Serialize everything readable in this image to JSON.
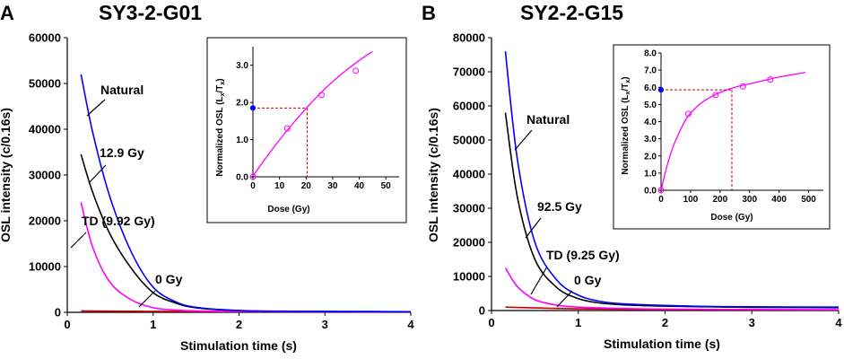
{
  "chart_data": [
    {
      "type": "line",
      "panel_label": "A",
      "title": "SY3-2-G01",
      "xlabel": "Stimulation time (s)",
      "ylabel": "OSL intensity (c/0.16s)",
      "xlim": [
        0,
        4
      ],
      "ylim": [
        0,
        60000
      ],
      "xticks": [
        "0",
        "1",
        "2",
        "3",
        "4"
      ],
      "yticks": [
        "0",
        "10000",
        "20000",
        "30000",
        "40000",
        "50000",
        "60000"
      ],
      "series": [
        {
          "name": "Natural",
          "color": "#0000ff",
          "x": [
            0.16,
            0.3,
            0.5,
            0.75,
            1.0,
            1.25,
            1.5,
            2.0,
            2.5,
            3.0,
            4.0
          ],
          "values": [
            52000,
            39000,
            25000,
            13000,
            5500,
            2400,
            1100,
            400,
            250,
            200,
            150
          ]
        },
        {
          "name": "12.9 Gy",
          "color": "#000000",
          "x": [
            0.16,
            0.3,
            0.5,
            0.75,
            1.0,
            1.25,
            1.5,
            2.0,
            2.5,
            3.0,
            4.0
          ],
          "values": [
            34500,
            26000,
            17000,
            9500,
            4300,
            2100,
            1000,
            350,
            220,
            180,
            120
          ]
        },
        {
          "name": "TD (9.92 Gy)",
          "color": "#ff00ff",
          "x": [
            0.16,
            0.3,
            0.5,
            0.75,
            1.0,
            1.25,
            1.5,
            2.0,
            2.5,
            3.0,
            4.0
          ],
          "values": [
            24000,
            14000,
            6500,
            2700,
            1000,
            500,
            300,
            150,
            120,
            100,
            80
          ]
        },
        {
          "name": "0 Gy",
          "color": "#cc0000",
          "x": [
            0.16,
            1.0,
            2.0,
            3.0,
            4.0
          ],
          "values": [
            300,
            200,
            150,
            120,
            100
          ]
        }
      ],
      "annotations": [
        "Natural",
        "12.9 Gy",
        "TD (9.92 Gy)",
        "0 Gy"
      ],
      "inset": {
        "type": "scatter",
        "xlabel": "Dose (Gy)",
        "ylabel": "Normalized OSL (Lx/Tx)",
        "xlim": [
          0,
          55
        ],
        "ylim": [
          0,
          3.5
        ],
        "xticks": [
          "0",
          "10",
          "20",
          "30",
          "40",
          "50"
        ],
        "yticks": [
          "0.0",
          "1.0",
          "2.0",
          "3.0"
        ],
        "points": [
          [
            0,
            0
          ],
          [
            12.9,
            1.3
          ],
          [
            25.8,
            2.2
          ],
          [
            38.7,
            2.85
          ]
        ],
        "fit_curve": {
          "x": [
            0,
            5,
            10,
            15,
            20,
            25,
            30,
            35,
            40,
            45
          ],
          "values": [
            0.02,
            0.52,
            0.99,
            1.43,
            1.84,
            2.22,
            2.56,
            2.86,
            3.13,
            3.37
          ]
        },
        "natural": {
          "y": 1.85,
          "dose": 20.4
        },
        "curve_color": "#ff00ff"
      }
    },
    {
      "type": "line",
      "panel_label": "B",
      "title": "SY2-2-G15",
      "xlabel": "Stimulation time (s)",
      "ylabel": "OSL intensity (c/0.16s)",
      "xlim": [
        0,
        4
      ],
      "ylim": [
        0,
        80000
      ],
      "xticks": [
        "0",
        "1",
        "2",
        "3",
        "4"
      ],
      "yticks": [
        "0",
        "10000",
        "20000",
        "30000",
        "40000",
        "50000",
        "60000",
        "70000",
        "80000"
      ],
      "series": [
        {
          "name": "Natural",
          "color": "#0000ff",
          "x": [
            0.16,
            0.3,
            0.5,
            0.75,
            1.0,
            1.25,
            1.5,
            2.0,
            2.5,
            3.0,
            4.0
          ],
          "values": [
            76000,
            44000,
            20000,
            9000,
            4500,
            2700,
            2000,
            1500,
            1200,
            1100,
            1000
          ]
        },
        {
          "name": "92.5 Gy",
          "color": "#000000",
          "x": [
            0.16,
            0.3,
            0.5,
            0.75,
            1.0,
            1.25,
            1.5,
            2.0,
            2.5,
            3.0,
            4.0
          ],
          "values": [
            58000,
            33000,
            15000,
            6800,
            3500,
            2200,
            1700,
            1300,
            1100,
            950,
            850
          ]
        },
        {
          "name": "TD (9.25 Gy)",
          "color": "#ff00ff",
          "x": [
            0.16,
            0.3,
            0.5,
            0.75,
            1.0,
            1.5,
            2.0,
            3.0,
            4.0
          ],
          "values": [
            12500,
            7000,
            3200,
            1600,
            1000,
            600,
            400,
            300,
            250
          ]
        },
        {
          "name": "0 Gy",
          "color": "#cc0000",
          "x": [
            0.16,
            1.0,
            2.0,
            3.0,
            4.0
          ],
          "values": [
            1000,
            500,
            300,
            250,
            200
          ]
        }
      ],
      "annotations": [
        "Natural",
        "92.5 Gy",
        "TD (9.25 Gy)",
        "0 Gy"
      ],
      "inset": {
        "type": "scatter",
        "xlabel": "Dose (Gy)",
        "ylabel": "Normalized OSL (Lx/Tx)",
        "xlim": [
          0,
          550
        ],
        "ylim": [
          0,
          8
        ],
        "xticks": [
          "0",
          "100",
          "200",
          "300",
          "400",
          "500"
        ],
        "yticks": [
          "0.0",
          "1.0",
          "2.0",
          "3.0",
          "4.0",
          "5.0",
          "6.0",
          "7.0",
          "8.0"
        ],
        "points": [
          [
            0,
            0
          ],
          [
            92.5,
            4.45
          ],
          [
            185,
            5.55
          ],
          [
            277.5,
            6.05
          ],
          [
            370,
            6.45
          ]
        ],
        "fit_curve": {
          "x": [
            0,
            20,
            40,
            60,
            80,
            100,
            130,
            160,
            200,
            250,
            300,
            350,
            400,
            450,
            490
          ],
          "values": [
            0.0,
            1.4,
            2.5,
            3.3,
            4.0,
            4.5,
            5.0,
            5.35,
            5.7,
            6.0,
            6.2,
            6.4,
            6.6,
            6.75,
            6.87
          ]
        },
        "natural": {
          "y": 5.85,
          "dose": 240
        },
        "curve_color": "#ff00ff"
      }
    }
  ]
}
